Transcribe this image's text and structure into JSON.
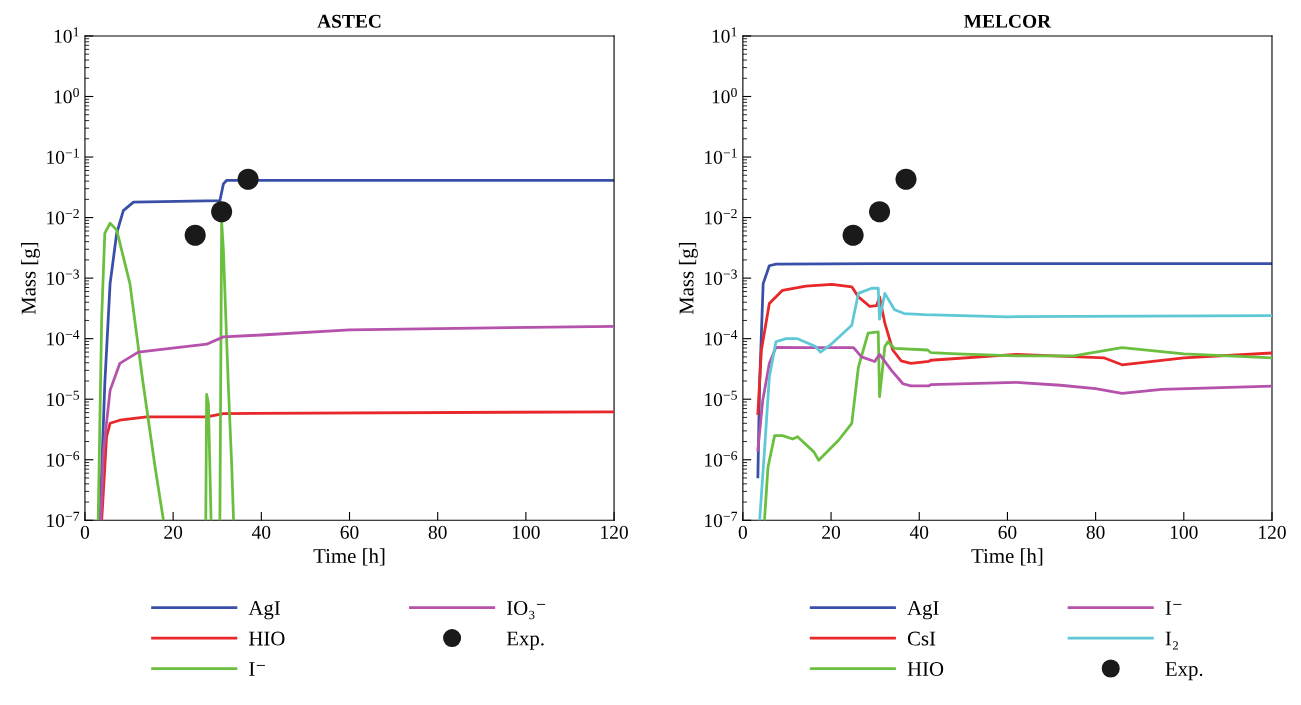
{
  "chart_data": [
    {
      "type": "line",
      "title": "ASTEC",
      "xlabel": "Time [h]",
      "ylabel": "Mass [g]",
      "log": "y",
      "xlim": [
        0,
        120
      ],
      "xticks": [
        0,
        20,
        40,
        60,
        80,
        100,
        120
      ],
      "ylim": [
        1e-07,
        10
      ],
      "yticks": [
        {
          "value": 1e-07,
          "label": "10$^{−7}$"
        },
        {
          "value": 1e-06,
          "label": "10$^{−6}$"
        },
        {
          "value": 1e-05,
          "label": "10$^{−5}$"
        },
        {
          "value": 0.0001,
          "label": "10$^{−4}$"
        },
        {
          "value": 0.001,
          "label": "10$^{−3}$"
        },
        {
          "value": 0.01,
          "label": "10$^{−2}$"
        },
        {
          "value": 0.1,
          "label": "10$^{−1}$"
        },
        {
          "value": 1,
          "label": "10$^{0}$"
        },
        {
          "value": 10,
          "label": "10$^{1}$"
        }
      ],
      "grid": false,
      "legend": "bottom",
      "series": [
        {
          "name": "AgI",
          "color": "#3a4fa8",
          "x": [
            3.4,
            4.5,
            5.7,
            7.2,
            8.7,
            11,
            30.6,
            31.4,
            32.1,
            120
          ],
          "values": [
            1e-07,
            1.8e-05,
            0.00081,
            0.0055,
            0.013,
            0.018,
            0.019,
            0.036,
            0.041,
            0.041
          ]
        },
        {
          "name": "HIO",
          "color": "#e8272a",
          "x": [
            3.8,
            4.9,
            5.7,
            7.9,
            14,
            27.6,
            31.4,
            120
          ],
          "values": [
            1e-07,
            2.4e-06,
            4e-06,
            4.5e-06,
            5.1e-06,
            5.1e-06,
            5.8e-06,
            6.2e-06
          ]
        },
        {
          "name": "I⁻",
          "color": "#6bbf3f",
          "x": [
            3.0,
            3.8,
            4.5,
            5.7,
            7.2,
            10.2,
            13.2,
            15.9,
            17.8,
            22,
            27.4,
            27.6,
            28,
            28.6,
            29.5,
            30.6,
            31.0,
            31.4,
            31.8,
            32.5,
            33.3,
            33.7
          ],
          "values": [
            1e-07,
            0.00023,
            0.0055,
            0.0081,
            0.0062,
            0.00081,
            1.8e-05,
            7.6e-07,
            1e-07,
            null,
            1e-07,
            1.2e-05,
            8.5e-06,
            1e-07,
            null,
            1e-07,
            0.0085,
            0.0029,
            0.00044,
            1.8e-05,
            7.6e-07,
            1e-07
          ]
        },
        {
          "name": "IO₃⁻",
          "color": "#b552ab",
          "x": [
            3.6,
            4.2,
            5.7,
            7.9,
            12.1,
            27.6,
            31.4,
            40,
            60,
            120
          ],
          "values": [
            1e-07,
            1.4e-06,
            1.4e-05,
            3.9e-05,
            6e-05,
            8.1e-05,
            0.000107,
            0.000115,
            0.00014,
            0.00016
          ]
        },
        {
          "name": "Exp.",
          "type": "scatter",
          "marker": "circle",
          "color": "#1a1a1a",
          "x": [
            25,
            31,
            37
          ],
          "values": [
            0.0051,
            0.0125,
            0.043
          ]
        }
      ]
    },
    {
      "type": "line",
      "title": "MELCOR",
      "xlabel": "Time [h]",
      "ylabel": "Mass [g]",
      "log": "y",
      "xlim": [
        0,
        120
      ],
      "xticks": [
        0,
        20,
        40,
        60,
        80,
        100,
        120
      ],
      "ylim": [
        1e-07,
        10
      ],
      "yticks": [
        {
          "value": 1e-07,
          "label": "10$^{−7}$"
        },
        {
          "value": 1e-06,
          "label": "10$^{−6}$"
        },
        {
          "value": 1e-05,
          "label": "10$^{−5}$"
        },
        {
          "value": 0.0001,
          "label": "10$^{−4}$"
        },
        {
          "value": 0.001,
          "label": "10$^{−3}$"
        },
        {
          "value": 0.01,
          "label": "10$^{−2}$"
        },
        {
          "value": 0.1,
          "label": "10$^{−1}$"
        },
        {
          "value": 1,
          "label": "10$^{0}$"
        },
        {
          "value": 10,
          "label": "10$^{1}$"
        }
      ],
      "grid": false,
      "legend": "bottom",
      "series": [
        {
          "name": "AgI",
          "color": "#3a4fa8",
          "x": [
            3.4,
            3.8,
            4.6,
            6.0,
            7.5,
            30.7,
            120
          ],
          "values": [
            5.2e-07,
            1.8e-05,
            0.00081,
            0.0016,
            0.0017,
            0.00174,
            0.00174
          ]
        },
        {
          "name": "CsI",
          "color": "#e8272a",
          "x": [
            3.4,
            4.2,
            6.0,
            9.0,
            14.3,
            20.2,
            24.7,
            26.2,
            28.8,
            30.3,
            31.0,
            32.2,
            34,
            35.9,
            38.1,
            42.2,
            42.6,
            62,
            82,
            86,
            100,
            120
          ],
          "values": [
            5.8e-06,
            6.5e-05,
            0.00038,
            0.00063,
            0.00074,
            0.00079,
            0.00072,
            0.00049,
            0.00034,
            0.00035,
            0.00049,
            0.00018,
            6.5e-05,
            4.3e-05,
            3.9e-05,
            4.2e-05,
            4.4e-05,
            5.5e-05,
            4.8e-05,
            3.7e-05,
            4.8e-05,
            5.8e-05
          ]
        },
        {
          "name": "HIO",
          "color": "#6bbf3f",
          "x": [
            4.9,
            5.7,
            7.2,
            9.0,
            11.3,
            12.4,
            16.1,
            17.2,
            21.7,
            24.7,
            26.2,
            28.4,
            30.7,
            31.0,
            32.2,
            32.9,
            34.4,
            41.9,
            42.6,
            48.6,
            62,
            75,
            86,
            100,
            120
          ],
          "values": [
            1e-07,
            7.6e-07,
            2.5e-06,
            2.5e-06,
            2.2e-06,
            2.4e-06,
            1.35e-06,
            9.8e-07,
            2.1e-06,
            4e-06,
            3.4e-05,
            0.000123,
            0.000129,
            1.1e-05,
            7.4e-05,
            8.9e-05,
            6.9e-05,
            6.5e-05,
            5.9e-05,
            5.6e-05,
            5.2e-05,
            5.2e-05,
            7.1e-05,
            5.6e-05,
            4.8e-05
          ]
        },
        {
          "name": "I⁻",
          "color": "#b552ab",
          "x": [
            3.4,
            4.5,
            6.0,
            7.5,
            14.3,
            25.1,
            26.9,
            29.9,
            31,
            33.7,
            36.3,
            38.1,
            42.2,
            42.6,
            62,
            72,
            80,
            86,
            95,
            120
          ],
          "values": [
            1.45e-06,
            9.5e-06,
            3.9e-05,
            7.2e-05,
            7.1e-05,
            7.1e-05,
            5e-05,
            4.2e-05,
            5.5e-05,
            3e-05,
            1.8e-05,
            1.66e-05,
            1.66e-05,
            1.74e-05,
            1.9e-05,
            1.7e-05,
            1.5e-05,
            1.25e-05,
            1.45e-05,
            1.65e-05
          ]
        },
        {
          "name": "I₂",
          "color": "#5fc8d6",
          "x": [
            3.8,
            4.9,
            6.0,
            7.5,
            9.8,
            12.4,
            16.5,
            17.6,
            20.2,
            24.7,
            26.2,
            29.2,
            30.7,
            31.0,
            32.2,
            34.4,
            36.6,
            41.1,
            60,
            120
          ],
          "values": [
            1e-07,
            1.4e-06,
            2.3e-05,
            8.9e-05,
            0.0001,
            0.0001,
            7.4e-05,
            6e-05,
            8.3e-05,
            0.000166,
            0.00056,
            0.00068,
            0.00068,
            0.00021,
            0.00056,
            0.0003,
            0.00026,
            0.00025,
            0.00023,
            0.00024
          ]
        },
        {
          "name": "Exp.",
          "type": "scatter",
          "marker": "circle",
          "color": "#1a1a1a",
          "x": [
            25,
            31,
            37
          ],
          "values": [
            0.0051,
            0.0125,
            0.043
          ]
        }
      ]
    }
  ]
}
